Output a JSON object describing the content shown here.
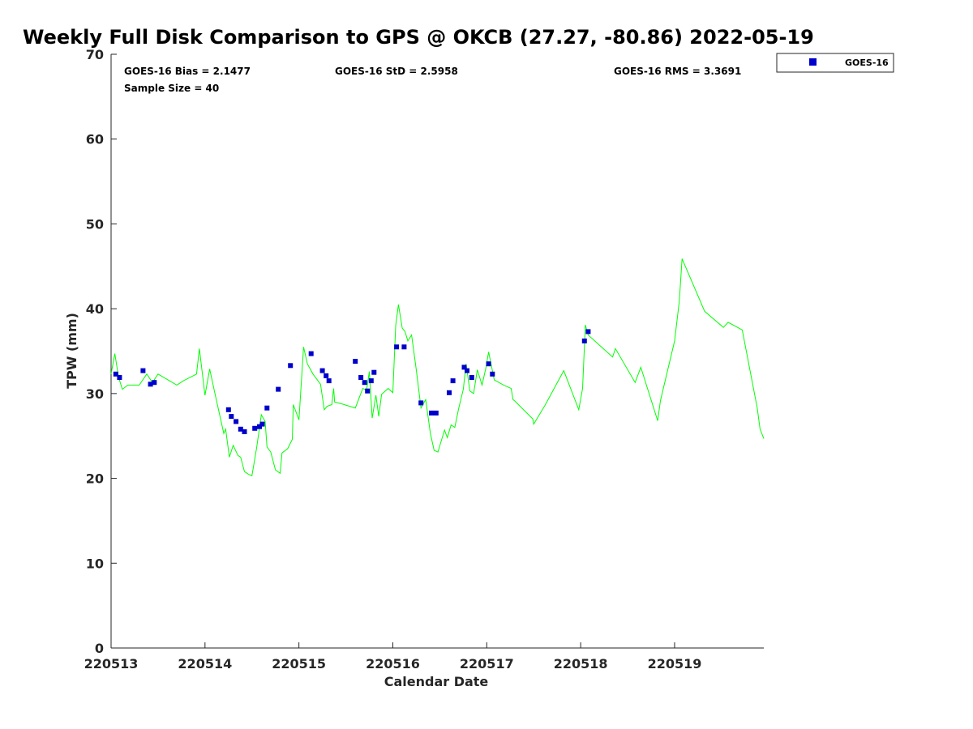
{
  "chart_data": {
    "type": "scatter",
    "title": "Weekly Full Disk Comparison to GPS @ OKCB (27.27, -80.86) 2022-05-19",
    "xlabel": "Calendar Date",
    "ylabel": "TPW (mm)",
    "xlim": [
      0,
      6.95
    ],
    "ylim": [
      0,
      70
    ],
    "x_ticks": [
      {
        "value": 0,
        "label": "220513"
      },
      {
        "value": 1,
        "label": "220514"
      },
      {
        "value": 2,
        "label": "220515"
      },
      {
        "value": 3,
        "label": "220516"
      },
      {
        "value": 4,
        "label": "220517"
      },
      {
        "value": 5,
        "label": "220518"
      },
      {
        "value": 6,
        "label": "220519"
      }
    ],
    "y_ticks": [
      0,
      10,
      20,
      30,
      40,
      50,
      60,
      70
    ],
    "grid": false,
    "legend": {
      "position": "top-right",
      "entries": [
        "GOES-16"
      ]
    },
    "stats": {
      "bias": "GOES-16 Bias = 2.1477",
      "std": "GOES-16 StD = 2.5958",
      "rms": "GOES-16 RMS = 3.3691",
      "sample": "Sample Size = 40"
    },
    "series": [
      {
        "name": "GOES-16",
        "kind": "scatter",
        "color": "#0000cc",
        "x": [
          0.05,
          0.09,
          0.34,
          0.42,
          0.46,
          1.25,
          1.28,
          1.33,
          1.38,
          1.42,
          1.53,
          1.58,
          1.61,
          1.66,
          1.78,
          1.91,
          2.13,
          2.25,
          2.29,
          2.32,
          2.6,
          2.66,
          2.7,
          2.73,
          2.77,
          2.8,
          3.04,
          3.12,
          3.3,
          3.41,
          3.46,
          3.6,
          3.64,
          3.76,
          3.79,
          3.84,
          4.02,
          4.06,
          5.04,
          5.08
        ],
        "y": [
          32.3,
          31.9,
          32.7,
          31.1,
          31.3,
          28.1,
          27.3,
          26.7,
          25.8,
          25.5,
          25.9,
          26.1,
          26.4,
          28.3,
          30.5,
          33.3,
          34.7,
          32.7,
          32.1,
          31.5,
          33.8,
          31.9,
          31.3,
          30.3,
          31.5,
          32.5,
          35.5,
          35.5,
          28.9,
          27.7,
          27.7,
          30.1,
          31.5,
          33.1,
          32.7,
          31.9,
          33.5,
          32.3,
          36.2,
          37.3
        ]
      },
      {
        "name": "GPS",
        "kind": "line",
        "color": "#00ff00",
        "x": [
          0.0,
          0.04,
          0.08,
          0.12,
          0.18,
          0.3,
          0.38,
          0.44,
          0.5,
          0.7,
          0.77,
          0.91,
          0.94,
          1.0,
          1.05,
          1.1,
          1.2,
          1.22,
          1.26,
          1.3,
          1.35,
          1.38,
          1.42,
          1.46,
          1.5,
          1.55,
          1.6,
          1.64,
          1.66,
          1.7,
          1.75,
          1.8,
          1.82,
          1.88,
          1.93,
          1.94,
          2.0,
          2.05,
          2.09,
          2.15,
          2.23,
          2.27,
          2.3,
          2.35,
          2.37,
          2.38,
          2.45,
          2.6,
          2.68,
          2.72,
          2.75,
          2.78,
          2.82,
          2.85,
          2.88,
          2.95,
          3.0,
          3.03,
          3.06,
          3.1,
          3.13,
          3.16,
          3.2,
          3.25,
          3.3,
          3.35,
          3.4,
          3.44,
          3.48,
          3.55,
          3.58,
          3.62,
          3.66,
          3.7,
          3.75,
          3.78,
          3.82,
          3.86,
          3.9,
          3.95,
          3.99,
          4.02,
          4.08,
          4.18,
          4.26,
          4.28,
          4.3,
          4.49,
          4.5,
          4.62,
          4.82,
          4.98,
          5.02,
          5.05,
          5.08,
          5.34,
          5.37,
          5.58,
          5.64,
          5.82,
          5.85,
          6.0,
          6.05,
          6.08,
          6.32,
          6.52,
          6.57,
          6.72,
          6.88,
          6.91,
          6.95
        ],
        "y": [
          32.3,
          34.7,
          31.9,
          30.5,
          31.0,
          31.0,
          32.3,
          31.3,
          32.3,
          31.0,
          31.5,
          32.3,
          35.3,
          29.8,
          32.9,
          30.3,
          25.3,
          25.8,
          22.5,
          23.9,
          22.7,
          22.5,
          20.8,
          20.5,
          20.3,
          23.6,
          27.5,
          26.7,
          23.7,
          23.1,
          21.0,
          20.6,
          23.0,
          23.5,
          24.6,
          28.7,
          26.9,
          35.5,
          33.5,
          32.3,
          31.1,
          28.1,
          28.5,
          28.7,
          30.6,
          29.0,
          28.8,
          28.3,
          30.6,
          30.4,
          32.6,
          27.1,
          29.8,
          27.3,
          29.9,
          30.6,
          30.1,
          38.0,
          40.5,
          37.7,
          37.3,
          36.2,
          36.9,
          32.8,
          28.3,
          29.3,
          25.3,
          23.3,
          23.1,
          25.7,
          24.8,
          26.3,
          26.0,
          28.2,
          30.5,
          33.5,
          30.3,
          30.0,
          32.8,
          31.0,
          33.0,
          34.9,
          31.6,
          31.0,
          30.6,
          29.3,
          29.1,
          27.0,
          26.4,
          28.6,
          32.7,
          28.1,
          30.6,
          38.1,
          36.9,
          34.3,
          35.3,
          31.3,
          33.1,
          26.8,
          29.2,
          36.2,
          40.9,
          45.9,
          39.7,
          37.8,
          38.4,
          37.5,
          28.3,
          25.8,
          24.7
        ]
      }
    ]
  }
}
